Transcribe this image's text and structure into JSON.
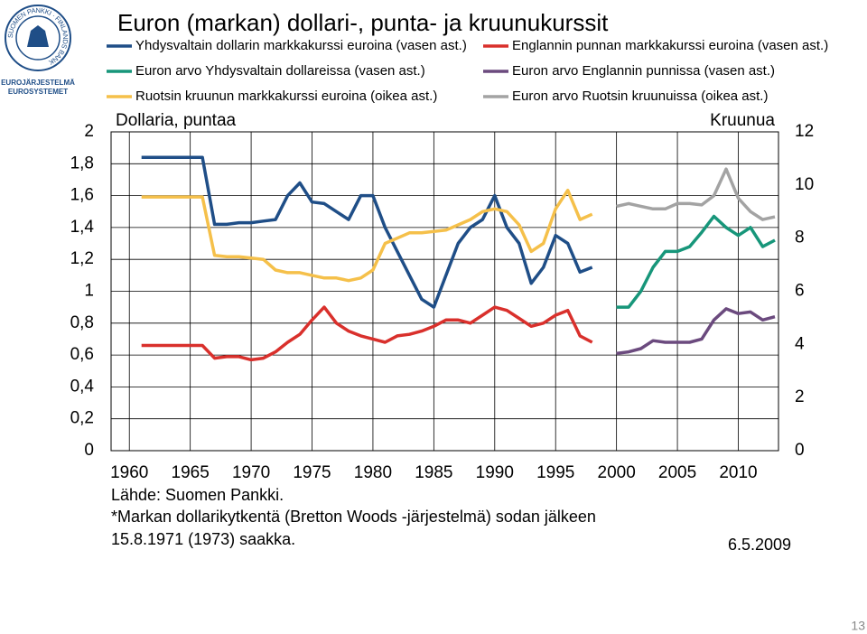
{
  "logo": {
    "ring": "SUOMEN PANKKI · FINLANDS BANK",
    "line1": "EUROJÄRJESTELMÄ",
    "line2": "EUROSYSTEMET"
  },
  "chart_data": {
    "type": "line",
    "title": "Euron (markan) dollari-, punta- ja kruunukurssit",
    "y_label": "Dollaria, puntaa",
    "y2_label": "Kruunua",
    "grid": true,
    "x": [
      1961,
      1962,
      1963,
      1964,
      1965,
      1966,
      1967,
      1968,
      1969,
      1970,
      1971,
      1972,
      1973,
      1974,
      1975,
      1976,
      1977,
      1978,
      1979,
      1980,
      1981,
      1982,
      1983,
      1984,
      1985,
      1986,
      1987,
      1988,
      1989,
      1990,
      1991,
      1992,
      1993,
      1994,
      1995,
      1996,
      1997,
      1998,
      1999,
      2000,
      2001,
      2002,
      2003,
      2004,
      2005,
      2006,
      2007,
      2008,
      2009,
      2010,
      2011,
      2012,
      2013
    ],
    "xlim": [
      1958.5,
      2013.3
    ],
    "xticks": [
      1960,
      1965,
      1970,
      1975,
      1980,
      1985,
      1990,
      1995,
      2000,
      2005,
      2010
    ],
    "ylim": [
      0,
      2
    ],
    "yticks": [
      0,
      {
        "value": 0.2,
        "label": "0,2"
      },
      {
        "value": 0.4,
        "label": "0,4"
      },
      {
        "value": 0.6,
        "label": "0,6"
      },
      {
        "value": 0.8,
        "label": "0,8"
      },
      1,
      {
        "value": 1.2,
        "label": "1,2"
      },
      {
        "value": 1.4,
        "label": "1,4"
      },
      {
        "value": 1.6,
        "label": "1,6"
      },
      {
        "value": 1.8,
        "label": "1,8"
      },
      2
    ],
    "y2lim": [
      0,
      12
    ],
    "y2ticks": [
      0,
      2,
      4,
      6,
      8,
      10,
      12
    ],
    "series": [
      {
        "name": "Yhdysvaltain dollarin markkakurssi euroina (vasen ast.)",
        "color": "#1f4e87",
        "values": [
          1.84,
          1.84,
          1.84,
          1.84,
          1.84,
          1.84,
          1.42,
          1.42,
          1.43,
          1.43,
          1.44,
          1.45,
          1.6,
          1.68,
          1.56,
          1.55,
          1.5,
          1.45,
          1.6,
          1.6,
          1.4,
          1.25,
          1.1,
          0.95,
          0.9,
          1.1,
          1.3,
          1.4,
          1.45,
          1.6,
          1.4,
          1.3,
          1.05,
          1.15,
          1.35,
          1.3,
          1.12,
          1.15,
          null,
          null,
          null,
          null,
          null,
          null,
          null,
          null,
          null,
          null,
          null,
          null,
          null,
          null,
          null
        ]
      },
      {
        "name": "Englannin punnan markkakurssi euroina (vasen ast.)",
        "color": "#d9302c",
        "values": [
          0.66,
          0.66,
          0.66,
          0.66,
          0.66,
          0.66,
          0.58,
          0.59,
          0.59,
          0.57,
          0.58,
          0.62,
          0.68,
          0.73,
          0.82,
          0.9,
          0.8,
          0.75,
          0.72,
          0.7,
          0.68,
          0.72,
          0.73,
          0.75,
          0.78,
          0.82,
          0.82,
          0.8,
          0.85,
          0.9,
          0.88,
          0.83,
          0.78,
          0.8,
          0.85,
          0.88,
          0.72,
          0.68,
          null,
          null,
          null,
          null,
          null,
          null,
          null,
          null,
          null,
          null,
          null,
          null,
          null,
          null,
          null
        ]
      },
      {
        "name": "Euron arvo Yhdysvaltain dollareissa (vasen ast.)",
        "color": "#17967a",
        "values": [
          null,
          null,
          null,
          null,
          null,
          null,
          null,
          null,
          null,
          null,
          null,
          null,
          null,
          null,
          null,
          null,
          null,
          null,
          null,
          null,
          null,
          null,
          null,
          null,
          null,
          null,
          null,
          null,
          null,
          null,
          null,
          null,
          null,
          null,
          null,
          null,
          null,
          null,
          null,
          0.9,
          0.9,
          1.0,
          1.15,
          1.25,
          1.25,
          1.28,
          1.37,
          1.47,
          1.4,
          1.35,
          1.4,
          1.28,
          1.32
        ]
      },
      {
        "name": "Euron arvo Englannin punnissa (vasen ast.)",
        "color": "#6b4a7e",
        "values": [
          null,
          null,
          null,
          null,
          null,
          null,
          null,
          null,
          null,
          null,
          null,
          null,
          null,
          null,
          null,
          null,
          null,
          null,
          null,
          null,
          null,
          null,
          null,
          null,
          null,
          null,
          null,
          null,
          null,
          null,
          null,
          null,
          null,
          null,
          null,
          null,
          null,
          null,
          null,
          0.61,
          0.62,
          0.64,
          0.69,
          0.68,
          0.68,
          0.68,
          0.7,
          0.82,
          0.89,
          0.86,
          0.87,
          0.82,
          0.84
        ]
      },
      {
        "name": "Ruotsin kruunun markkakurssi euroina (oikea ast.)",
        "color": "#f5c04a",
        "axis": "y2",
        "values": [
          9.55,
          9.55,
          9.55,
          9.55,
          9.55,
          9.55,
          7.35,
          7.3,
          7.3,
          7.25,
          7.2,
          6.8,
          6.7,
          6.7,
          6.6,
          6.5,
          6.5,
          6.4,
          6.5,
          6.8,
          7.8,
          8.0,
          8.2,
          8.2,
          8.25,
          8.3,
          8.5,
          8.7,
          9.0,
          9.1,
          9.0,
          8.5,
          7.5,
          7.8,
          9.1,
          9.8,
          8.7,
          8.9,
          null,
          null,
          null,
          null,
          null,
          null,
          null,
          null,
          null,
          null,
          null,
          null,
          null,
          null,
          null
        ]
      },
      {
        "name": "Euron arvo Ruotsin kruunuissa (oikea ast.)",
        "color": "#a3a3a3",
        "axis": "y2",
        "values": [
          null,
          null,
          null,
          null,
          null,
          null,
          null,
          null,
          null,
          null,
          null,
          null,
          null,
          null,
          null,
          null,
          null,
          null,
          null,
          null,
          null,
          null,
          null,
          null,
          null,
          null,
          null,
          null,
          null,
          null,
          null,
          null,
          null,
          null,
          null,
          null,
          null,
          null,
          null,
          9.2,
          9.3,
          9.2,
          9.1,
          9.1,
          9.3,
          9.3,
          9.25,
          9.6,
          10.6,
          9.5,
          9.0,
          8.7,
          8.8
        ]
      }
    ]
  },
  "notes": [
    "Lähde: Suomen Pankki.",
    "*Markan dollarikytkentä (Bretton Woods -järjestelmä) sodan jälkeen",
    "15.8.1971 (1973) saakka."
  ],
  "date": "6.5.2009",
  "page_number": "13"
}
